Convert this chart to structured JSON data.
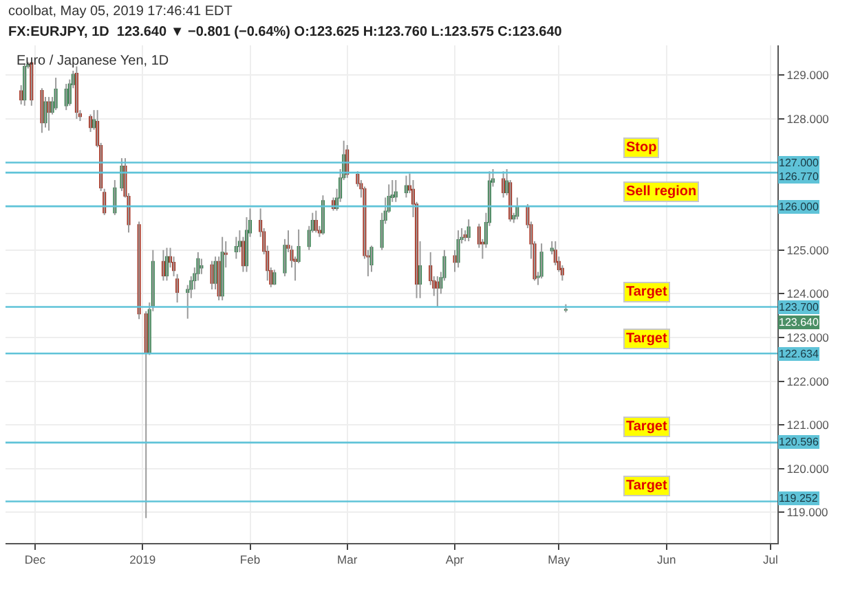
{
  "chart_data": {
    "type": "candlestick",
    "title": "coolbat, May 05, 2019 17:46:41 EDT",
    "subtitle": "FX:EURJPY, 1D  123.640 ▼ −0.801 (−0.64%) O:123.625 H:123.760 L:123.575 C:123.640",
    "x": [
      "2018-11-27",
      "2018-11-28",
      "2018-11-29",
      "2018-11-30",
      "2018-12-03",
      "2018-12-04",
      "2018-12-05",
      "2018-12-06",
      "2018-12-07",
      "2018-12-10",
      "2018-12-11",
      "2018-12-12",
      "2018-12-13",
      "2018-12-14",
      "2018-12-17",
      "2018-12-18",
      "2018-12-19",
      "2018-12-20",
      "2018-12-21",
      "2018-12-24",
      "2018-12-26",
      "2018-12-27",
      "2018-12-28",
      "2018-12-31",
      "2019-01-02",
      "2019-01-03",
      "2019-01-04",
      "2019-01-07",
      "2019-01-08",
      "2019-01-09",
      "2019-01-10",
      "2019-01-11",
      "2019-01-14",
      "2019-01-15",
      "2019-01-16",
      "2019-01-17",
      "2019-01-18",
      "2019-01-21",
      "2019-01-22",
      "2019-01-23",
      "2019-01-24",
      "2019-01-25",
      "2019-01-28",
      "2019-01-29",
      "2019-01-30",
      "2019-01-31",
      "2019-02-01",
      "2019-02-04",
      "2019-02-05",
      "2019-02-06",
      "2019-02-07",
      "2019-02-08",
      "2019-02-11",
      "2019-02-12",
      "2019-02-13",
      "2019-02-14",
      "2019-02-15",
      "2019-02-18",
      "2019-02-19",
      "2019-02-20",
      "2019-02-21",
      "2019-02-22",
      "2019-02-25",
      "2019-02-26",
      "2019-02-27",
      "2019-02-28",
      "2019-03-01",
      "2019-03-04",
      "2019-03-05",
      "2019-03-06",
      "2019-03-07",
      "2019-03-08",
      "2019-03-11",
      "2019-03-12",
      "2019-03-13",
      "2019-03-14",
      "2019-03-15",
      "2019-03-18",
      "2019-03-19",
      "2019-03-20",
      "2019-03-21",
      "2019-03-22",
      "2019-03-25",
      "2019-03-26",
      "2019-03-27",
      "2019-03-28",
      "2019-03-29",
      "2019-04-01",
      "2019-04-02",
      "2019-04-03",
      "2019-04-04",
      "2019-04-05",
      "2019-04-08",
      "2019-04-09",
      "2019-04-10",
      "2019-04-11",
      "2019-04-12",
      "2019-04-15",
      "2019-04-16",
      "2019-04-17",
      "2019-04-18",
      "2019-04-19",
      "2019-04-22",
      "2019-04-23",
      "2019-04-24",
      "2019-04-25",
      "2019-04-26",
      "2019-04-29",
      "2019-04-30",
      "2019-05-01",
      "2019-05-02",
      "2019-05-03"
    ],
    "ohlc": [
      [
        128.64,
        128.77,
        128.33,
        128.43
      ],
      [
        128.43,
        129.27,
        128.3,
        129.2
      ],
      [
        129.2,
        129.3,
        129.15,
        129.25
      ],
      [
        129.28,
        129.3,
        128.3,
        128.43
      ],
      [
        128.65,
        128.7,
        127.68,
        127.91
      ],
      [
        127.91,
        128.5,
        127.8,
        128.39
      ],
      [
        128.39,
        128.5,
        127.73,
        128.15
      ],
      [
        128.15,
        128.5,
        128.1,
        128.39
      ],
      [
        128.25,
        128.94,
        128.2,
        128.68
      ],
      [
        128.3,
        128.8,
        128.2,
        128.68
      ],
      [
        128.35,
        128.9,
        128.3,
        128.8
      ],
      [
        128.78,
        129.1,
        128.7,
        129.02
      ],
      [
        129.04,
        129.2,
        128.0,
        128.15
      ],
      [
        128.12,
        128.2,
        127.95,
        128.05
      ],
      [
        128.05,
        128.1,
        127.7,
        127.8
      ],
      [
        127.8,
        128.2,
        127.75,
        127.98
      ],
      [
        127.94,
        128.2,
        127.35,
        127.39
      ],
      [
        127.39,
        127.45,
        126.35,
        126.42
      ],
      [
        126.32,
        126.4,
        125.8,
        125.85
      ],
      [
        125.85,
        126.6,
        125.8,
        126.42
      ],
      [
        126.42,
        127.1,
        126.35,
        126.92
      ],
      [
        126.92,
        127.1,
        126.2,
        126.23
      ],
      [
        126.23,
        126.3,
        125.4,
        125.58
      ],
      [
        125.58,
        125.65,
        123.42,
        123.54
      ],
      [
        123.54,
        123.6,
        118.87,
        122.65
      ],
      [
        122.65,
        123.8,
        122.6,
        123.64
      ],
      [
        123.72,
        125.0,
        123.6,
        124.74
      ],
      [
        124.74,
        125.0,
        124.3,
        124.41
      ],
      [
        124.41,
        125.05,
        124.3,
        124.85
      ],
      [
        124.85,
        125.05,
        124.6,
        124.72
      ],
      [
        124.72,
        124.85,
        124.4,
        124.53
      ],
      [
        124.34,
        124.45,
        123.8,
        124.03
      ],
      [
        124.03,
        124.2,
        123.43,
        124.1
      ],
      [
        124.1,
        124.4,
        123.9,
        124.3
      ],
      [
        124.3,
        124.6,
        124.1,
        124.46
      ],
      [
        124.46,
        124.95,
        124.3,
        124.8
      ],
      [
        124.59,
        124.8,
        124.45,
        124.64
      ],
      [
        124.66,
        124.75,
        124.1,
        124.24
      ],
      [
        124.24,
        124.85,
        124.1,
        124.74
      ],
      [
        124.74,
        124.85,
        123.85,
        123.95
      ],
      [
        123.95,
        125.3,
        123.85,
        124.95
      ],
      [
        124.93,
        125.2,
        124.6,
        124.9
      ],
      [
        124.96,
        125.3,
        124.8,
        125.08
      ],
      [
        125.08,
        125.45,
        124.95,
        125.2
      ],
      [
        125.2,
        125.3,
        124.5,
        124.64
      ],
      [
        124.64,
        125.75,
        124.5,
        125.45
      ],
      [
        125.39,
        125.95,
        125.3,
        125.68
      ],
      [
        125.68,
        125.95,
        125.3,
        125.42
      ],
      [
        125.42,
        125.5,
        124.9,
        124.97
      ],
      [
        124.97,
        125.1,
        124.3,
        124.53
      ],
      [
        124.53,
        124.6,
        124.15,
        124.22
      ],
      [
        124.22,
        124.55,
        124.2,
        124.48
      ],
      [
        124.48,
        125.25,
        124.4,
        125.11
      ],
      [
        125.11,
        125.45,
        124.95,
        125.04
      ],
      [
        125.0,
        125.1,
        124.6,
        124.76
      ],
      [
        124.79,
        124.85,
        124.3,
        124.74
      ],
      [
        124.74,
        125.47,
        124.7,
        125.08
      ],
      [
        125.08,
        125.55,
        125.0,
        125.45
      ],
      [
        125.45,
        125.85,
        125.4,
        125.68
      ],
      [
        125.68,
        125.9,
        125.4,
        125.45
      ],
      [
        125.45,
        125.55,
        125.3,
        125.39
      ],
      [
        125.39,
        126.25,
        125.35,
        126.13
      ],
      [
        126.13,
        126.2,
        125.9,
        125.95
      ],
      [
        125.95,
        126.4,
        125.9,
        126.19
      ],
      [
        126.19,
        126.85,
        126.1,
        126.65
      ],
      [
        126.65,
        127.5,
        126.6,
        127.18
      ],
      [
        127.29,
        127.4,
        126.65,
        126.73
      ],
      [
        126.73,
        126.8,
        126.45,
        126.52
      ],
      [
        126.52,
        126.6,
        126.2,
        126.4
      ],
      [
        126.4,
        126.45,
        124.8,
        124.87
      ],
      [
        124.87,
        125.0,
        124.4,
        124.84
      ],
      [
        124.66,
        125.1,
        124.5,
        125.06
      ],
      [
        125.06,
        125.85,
        125.0,
        125.68
      ],
      [
        125.68,
        126.2,
        125.6,
        125.89
      ],
      [
        125.89,
        126.5,
        125.85,
        126.23
      ],
      [
        126.2,
        126.6,
        126.1,
        126.26
      ],
      [
        126.21,
        126.6,
        126.1,
        126.33
      ],
      [
        126.31,
        126.7,
        126.2,
        126.47
      ],
      [
        126.47,
        126.75,
        126.3,
        126.37
      ],
      [
        126.39,
        126.6,
        125.75,
        126.05
      ],
      [
        126.05,
        126.1,
        123.9,
        124.22
      ],
      [
        124.22,
        125.2,
        123.9,
        124.64
      ],
      [
        124.64,
        124.95,
        124.2,
        124.3
      ],
      [
        124.3,
        124.4,
        123.95,
        124.13
      ],
      [
        124.27,
        124.4,
        123.7,
        124.13
      ],
      [
        124.13,
        124.5,
        124.0,
        124.37
      ],
      [
        124.37,
        125.0,
        124.3,
        124.85
      ],
      [
        124.87,
        125.0,
        124.5,
        124.72
      ],
      [
        124.72,
        125.45,
        124.6,
        125.24
      ],
      [
        125.24,
        125.5,
        125.15,
        125.29
      ],
      [
        125.35,
        125.45,
        125.2,
        125.29
      ],
      [
        125.29,
        125.7,
        125.2,
        125.53
      ],
      [
        125.53,
        125.6,
        125.05,
        125.14
      ],
      [
        125.18,
        125.25,
        124.8,
        125.14
      ],
      [
        125.14,
        125.85,
        125.05,
        125.63
      ],
      [
        125.63,
        126.8,
        125.55,
        126.58
      ],
      [
        126.55,
        126.85,
        126.45,
        126.63
      ],
      [
        126.63,
        126.8,
        126.2,
        126.31
      ],
      [
        126.31,
        126.85,
        126.25,
        126.58
      ],
      [
        126.54,
        126.6,
        125.65,
        125.71
      ],
      [
        125.71,
        125.85,
        125.62,
        125.79
      ],
      [
        125.77,
        126.2,
        125.7,
        126.0
      ],
      [
        126.0,
        126.05,
        125.5,
        125.58
      ],
      [
        125.58,
        125.65,
        124.8,
        125.14
      ],
      [
        125.14,
        125.2,
        124.3,
        124.34
      ],
      [
        124.37,
        124.5,
        124.2,
        124.4
      ],
      [
        124.4,
        125.15,
        124.35,
        124.95
      ],
      [
        124.98,
        125.2,
        124.9,
        125.04
      ],
      [
        125.0,
        125.2,
        124.65,
        124.72
      ],
      [
        124.74,
        124.85,
        124.5,
        124.55
      ],
      [
        124.58,
        124.65,
        124.3,
        124.43
      ],
      [
        123.625,
        123.76,
        123.575,
        123.64
      ]
    ],
    "xlim": [
      "2018-11-22T12:00",
      "2019-07-03"
    ],
    "xticks": [
      {
        "value": "2018-12",
        "label": "Dec"
      },
      {
        "value": "2019-01",
        "label": "2019"
      },
      {
        "value": "2019-02",
        "label": "Feb"
      },
      {
        "value": "2019-03",
        "label": "Mar"
      },
      {
        "value": "2019-04",
        "label": "Apr"
      },
      {
        "value": "2019-05",
        "label": "May"
      },
      {
        "value": "2019-06",
        "label": "Jun"
      },
      {
        "value": "2019-07",
        "label": "Jul"
      }
    ],
    "ylim": [
      118.3,
      129.68
    ],
    "yticks": [
      {
        "value": 119,
        "label": "119.000"
      },
      {
        "value": 120,
        "label": "120.000"
      },
      {
        "value": 121,
        "label": "121.000"
      },
      {
        "value": 122,
        "label": "122.000"
      },
      {
        "value": 123,
        "label": "123.000"
      },
      {
        "value": 124,
        "label": "124.000"
      },
      {
        "value": 125,
        "label": "125.000"
      },
      {
        "value": 128,
        "label": "128.000"
      },
      {
        "value": 129,
        "label": "129.000"
      }
    ],
    "ref_lines": [
      {
        "axis": "y",
        "value": 127.0,
        "label": "127.000",
        "color": "#5fc3d8"
      },
      {
        "axis": "y",
        "value": 126.77,
        "label": "126.770",
        "color": "#5fc3d8"
      },
      {
        "axis": "y",
        "value": 126.0,
        "label": "126.000",
        "color": "#5fc3d8"
      },
      {
        "axis": "y",
        "value": 123.7,
        "label": "123.700",
        "color": "#5fc3d8"
      },
      {
        "axis": "y",
        "value": 122.634,
        "label": "122.634",
        "color": "#5fc3d8"
      },
      {
        "axis": "y",
        "value": 120.596,
        "label": "120.596",
        "color": "#5fc3d8"
      },
      {
        "axis": "y",
        "value": 119.252,
        "label": "119.252",
        "color": "#5fc3d8"
      }
    ],
    "annotations": [
      "Euro / Japanese Yen, 1D",
      "123.640",
      {
        "text": "Stop",
        "y": 127.0
      },
      {
        "text": "Sell region",
        "y": 126.0
      },
      {
        "text": "Target",
        "y": 123.7
      },
      {
        "text": "Target",
        "y": 122.634
      },
      {
        "text": "Target",
        "y": 120.596
      },
      {
        "text": "Target",
        "y": 119.252
      }
    ],
    "grid": true
  }
}
